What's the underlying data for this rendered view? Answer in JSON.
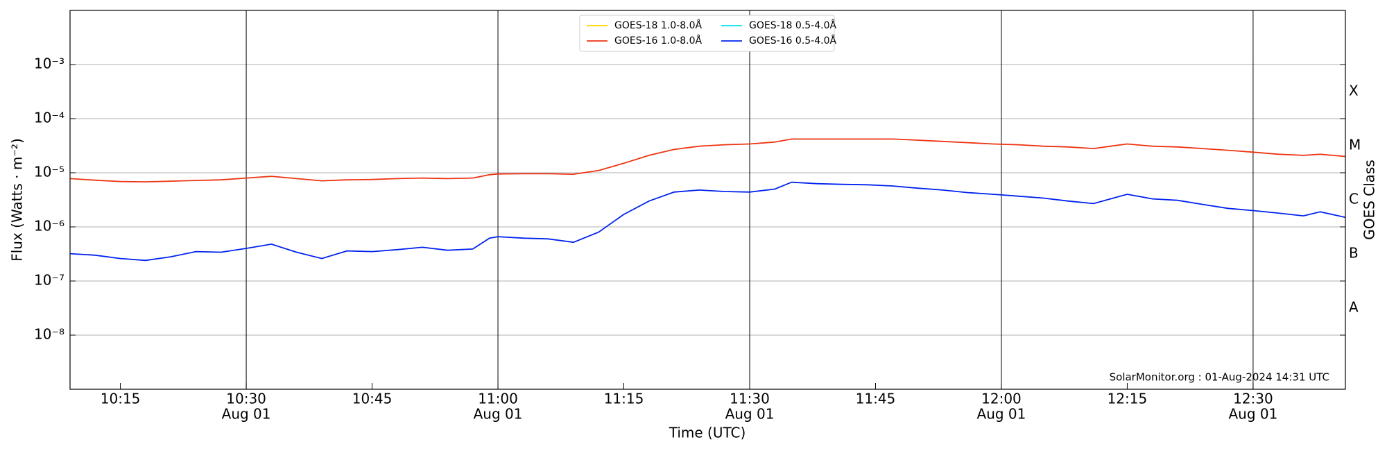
{
  "chart_data": {
    "type": "line",
    "xlabel": "Time (UTC)",
    "ylabel": "Flux (Watts · m⁻²)",
    "y2label": "GOES Class",
    "annotation": "SolarMonitor.org : 01-Aug-2024 14:31 UTC",
    "log_y": true,
    "grid": true,
    "legend": "upper center",
    "xlim": [
      "10:09",
      "12:41"
    ],
    "xticks": [
      "10:15",
      {
        "value": "10:30",
        "label": [
          "10:30",
          "Aug 01"
        ]
      },
      "10:45",
      {
        "value": "11:00",
        "label": [
          "11:00",
          "Aug 01"
        ]
      },
      "11:15",
      {
        "value": "11:30",
        "label": [
          "11:30",
          "Aug 01"
        ]
      },
      "11:45",
      {
        "value": "12:00",
        "label": [
          "12:00",
          "Aug 01"
        ]
      },
      "12:15",
      {
        "value": "12:30",
        "label": [
          "12:30",
          "Aug 01"
        ]
      }
    ],
    "ylim": [
      1e-09,
      0.01
    ],
    "yticks": [
      {
        "value": 1e-08,
        "label": "10⁻⁸"
      },
      {
        "value": 1e-07,
        "label": "10⁻⁷"
      },
      {
        "value": 1e-06,
        "label": "10⁻⁶"
      },
      {
        "value": 1e-05,
        "label": "10⁻⁵"
      },
      {
        "value": 0.0001,
        "label": "10⁻⁴"
      },
      {
        "value": 0.001,
        "label": "10⁻³"
      }
    ],
    "y2lim": [
      1e-09,
      0.01
    ],
    "y2ticks": [
      {
        "value": 3.162e-08,
        "label": "A"
      },
      {
        "value": 3.162e-07,
        "label": "B"
      },
      {
        "value": 3.162e-06,
        "label": "C"
      },
      {
        "value": 3.162e-05,
        "label": "M"
      },
      {
        "value": 0.0003162,
        "label": "X"
      }
    ],
    "x": [
      "10:09",
      "10:12",
      "10:15",
      "10:18",
      "10:21",
      "10:24",
      "10:27",
      "10:30",
      "10:33",
      "10:36",
      "10:39",
      "10:42",
      "10:45",
      "10:48",
      "10:51",
      "10:54",
      "10:57",
      "10:59",
      "11:00",
      "11:03",
      "11:06",
      "11:09",
      "11:12",
      "11:15",
      "11:18",
      "11:21",
      "11:24",
      "11:27",
      "11:30",
      "11:33",
      "11:35",
      "11:38",
      "11:41",
      "11:44",
      "11:47",
      "11:50",
      "11:53",
      "11:56",
      "11:59",
      "12:02",
      "12:05",
      "12:08",
      "12:11",
      "12:13",
      "12:15",
      "12:18",
      "12:21",
      "12:24",
      "12:27",
      "12:30",
      "12:33",
      "12:36",
      "12:38",
      "12:41"
    ],
    "series": [
      {
        "name": "GOES-18 1.0-8.0Å",
        "color": "#ffd700",
        "values": [
          null,
          null,
          null,
          null,
          null,
          null,
          null,
          null,
          null,
          null,
          null,
          null,
          null,
          null,
          null,
          null,
          null,
          null,
          null,
          null,
          null,
          null,
          null,
          null,
          null,
          null,
          null,
          null,
          null,
          null,
          null,
          null,
          null,
          null,
          null,
          null,
          null,
          null,
          null,
          null,
          null,
          null,
          null,
          null,
          null,
          null,
          null,
          null,
          null,
          null,
          null,
          null,
          null,
          null
        ]
      },
      {
        "name": "GOES-16 1.0-8.0Å",
        "color": "#ee3311",
        "values": [
          7.8e-06,
          7.3e-06,
          6.9e-06,
          6.8e-06,
          7e-06,
          7.2e-06,
          7.4e-06,
          8e-06,
          8.6e-06,
          7.8e-06,
          7.1e-06,
          7.4e-06,
          7.5e-06,
          7.8e-06,
          8e-06,
          7.8e-06,
          8e-06,
          9.2e-06,
          9.5e-06,
          9.6e-06,
          9.6e-06,
          9.4e-06,
          1.1e-05,
          1.5e-05,
          2.1e-05,
          2.7e-05,
          3.1e-05,
          3.3e-05,
          3.4e-05,
          3.7e-05,
          4.2e-05,
          4.2e-05,
          4.2e-05,
          4.2e-05,
          4.2e-05,
          4e-05,
          3.8e-05,
          3.6e-05,
          3.4e-05,
          3.3e-05,
          3.1e-05,
          3e-05,
          2.8e-05,
          3.1e-05,
          3.4e-05,
          3.1e-05,
          3e-05,
          2.8e-05,
          2.6e-05,
          2.4e-05,
          2.2e-05,
          2.1e-05,
          2.2e-05,
          2e-05
        ]
      },
      {
        "name": "GOES-18 0.5-4.0Å",
        "color": "#00e5ee",
        "values": [
          null,
          null,
          null,
          null,
          null,
          null,
          null,
          null,
          null,
          null,
          null,
          null,
          null,
          null,
          null,
          null,
          null,
          null,
          null,
          null,
          null,
          null,
          null,
          null,
          null,
          null,
          null,
          null,
          null,
          null,
          null,
          null,
          null,
          null,
          null,
          null,
          null,
          null,
          null,
          null,
          null,
          null,
          null,
          null,
          null,
          null,
          null,
          null,
          null,
          null,
          null,
          null,
          null,
          null
        ]
      },
      {
        "name": "GOES-16 0.5-4.0Å",
        "color": "#0022ee",
        "values": [
          3.2e-07,
          3e-07,
          2.6e-07,
          2.4e-07,
          2.8e-07,
          3.5e-07,
          3.4e-07,
          4e-07,
          4.8e-07,
          3.4e-07,
          2.6e-07,
          3.6e-07,
          3.5e-07,
          3.8e-07,
          4.2e-07,
          3.7e-07,
          3.9e-07,
          6.2e-07,
          6.6e-07,
          6.2e-07,
          6e-07,
          5.2e-07,
          8e-07,
          1.7e-06,
          3e-06,
          4.4e-06,
          4.8e-06,
          4.5e-06,
          4.4e-06,
          5e-06,
          6.7e-06,
          6.3e-06,
          6.1e-06,
          6e-06,
          5.7e-06,
          5.2e-06,
          4.8e-06,
          4.3e-06,
          4e-06,
          3.7e-06,
          3.4e-06,
          3e-06,
          2.7e-06,
          3.3e-06,
          4e-06,
          3.3e-06,
          3.1e-06,
          2.6e-06,
          2.2e-06,
          2e-06,
          1.8e-06,
          1.6e-06,
          1.9e-06,
          1.5e-06
        ]
      }
    ]
  }
}
